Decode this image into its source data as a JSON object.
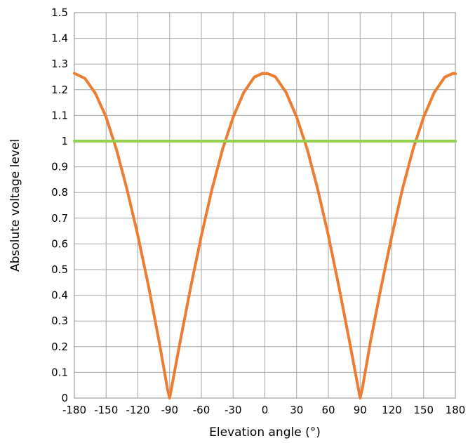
{
  "chart_data": {
    "type": "line",
    "title": "",
    "xlabel": "Elevation angle (°)",
    "ylabel": "Absolute voltage level",
    "xlim": [
      -180,
      180
    ],
    "ylim": [
      0,
      1.5
    ],
    "x_ticks": [
      -180,
      -150,
      -120,
      -90,
      -60,
      -30,
      0,
      30,
      60,
      90,
      120,
      150,
      180
    ],
    "y_ticks": [
      0,
      0.1,
      0.2,
      0.3,
      0.4,
      0.5,
      0.6,
      0.7,
      0.8,
      0.9,
      1,
      1.1,
      1.2,
      1.3,
      1.4,
      1.5
    ],
    "x_tick_labels": [
      "-180",
      "-150",
      "-120",
      "-90",
      "-60",
      "-30",
      "0",
      "30",
      "60",
      "90",
      "120",
      "150",
      "180"
    ],
    "y_tick_labels": [
      "0",
      "0.1",
      "0.2",
      "0.3",
      "0.4",
      "0.5",
      "0.6",
      "0.7",
      "0.8",
      "0.9",
      "1",
      "1.1",
      "1.2",
      "1.3",
      "1.4",
      "1.5"
    ],
    "grid": true,
    "legend": "none",
    "series": [
      {
        "color": "#ed7d31",
        "x": [
          -180,
          -170,
          -160,
          -150,
          -140,
          -130,
          -120,
          -110,
          -100,
          -92,
          -90,
          -88,
          -80,
          -70,
          -60,
          -50,
          -40,
          -30,
          -20,
          -10,
          -2,
          0,
          2,
          10,
          20,
          30,
          40,
          50,
          60,
          70,
          80,
          88,
          90,
          92,
          100,
          110,
          120,
          130,
          140,
          150,
          160,
          170,
          178,
          180
        ],
        "y": [
          1.264,
          1.244,
          1.185,
          1.093,
          0.964,
          0.808,
          0.632,
          0.437,
          0.222,
          0.035,
          0,
          0.044,
          0.221,
          0.433,
          0.632,
          0.812,
          0.968,
          1.093,
          1.189,
          1.249,
          1.264,
          1.262,
          1.264,
          1.25,
          1.19,
          1.094,
          0.969,
          0.812,
          0.633,
          0.432,
          0.22,
          0.044,
          0,
          0.035,
          0.224,
          0.435,
          0.632,
          0.813,
          0.968,
          1.093,
          1.189,
          1.249,
          1.264,
          1.262
        ]
      },
      {
        "color": "#92d050",
        "x": [
          -180,
          180
        ],
        "y": [
          1,
          1
        ]
      }
    ]
  }
}
